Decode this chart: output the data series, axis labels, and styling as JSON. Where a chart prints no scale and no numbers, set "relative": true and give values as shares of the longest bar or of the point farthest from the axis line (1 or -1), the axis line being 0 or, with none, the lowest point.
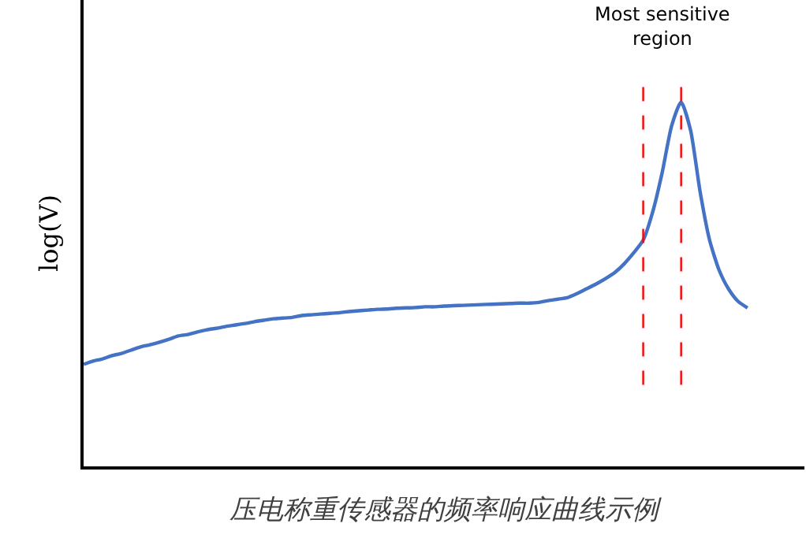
{
  "chart_data": {
    "type": "line",
    "relative": true,
    "xlabel": "压电称重传感器的频率响应曲线示例",
    "ylabel": "log(V)",
    "categories": [
      null,
      null,
      null,
      null,
      null,
      null,
      null,
      null,
      null,
      null,
      null,
      null,
      null,
      null,
      null,
      null,
      null,
      null,
      null,
      null,
      null,
      null,
      null,
      null,
      null,
      null,
      null,
      null,
      null,
      null,
      null,
      null,
      null,
      null,
      null,
      null,
      null,
      null,
      null,
      null,
      null,
      null,
      null,
      null,
      null,
      null,
      null,
      null,
      null,
      null,
      null,
      null,
      null,
      null,
      null,
      null,
      null,
      null,
      null,
      null,
      null,
      null,
      null,
      null,
      null,
      null,
      null,
      null,
      null,
      null,
      null,
      null,
      null,
      null,
      null,
      null,
      null
    ],
    "series": [
      {
        "color": "#4472c4",
        "values": [
          0.28,
          0.289,
          0.295,
          0.304,
          0.31,
          0.319,
          0.328,
          0.334,
          0.341,
          0.349,
          0.358,
          0.362,
          0.369,
          0.375,
          0.379,
          0.384,
          0.388,
          0.392,
          0.397,
          0.401,
          0.405,
          0.407,
          0.409,
          0.414,
          0.416,
          0.418,
          0.42,
          0.422,
          0.425,
          0.427,
          0.429,
          0.431,
          0.432,
          0.434,
          0.435,
          0.436,
          0.438,
          0.438,
          0.44,
          0.441,
          0.442,
          0.443,
          0.444,
          0.445,
          0.446,
          0.447,
          0.448,
          0.448,
          0.45,
          0.455,
          0.459,
          0.463,
          0.474,
          0.487,
          0.5,
          0.515,
          0.532,
          0.556,
          0.586,
          0.621,
          0.698,
          0.806,
          0.935,
          1.0,
          0.922,
          0.754,
          0.621,
          0.539,
          0.487,
          0.453,
          0.435,
          null,
          null,
          null,
          null,
          null,
          null
        ]
      }
    ],
    "annotations": [
      "Most sensitive region"
    ],
    "marker": "none",
    "line_style": "solid"
  }
}
